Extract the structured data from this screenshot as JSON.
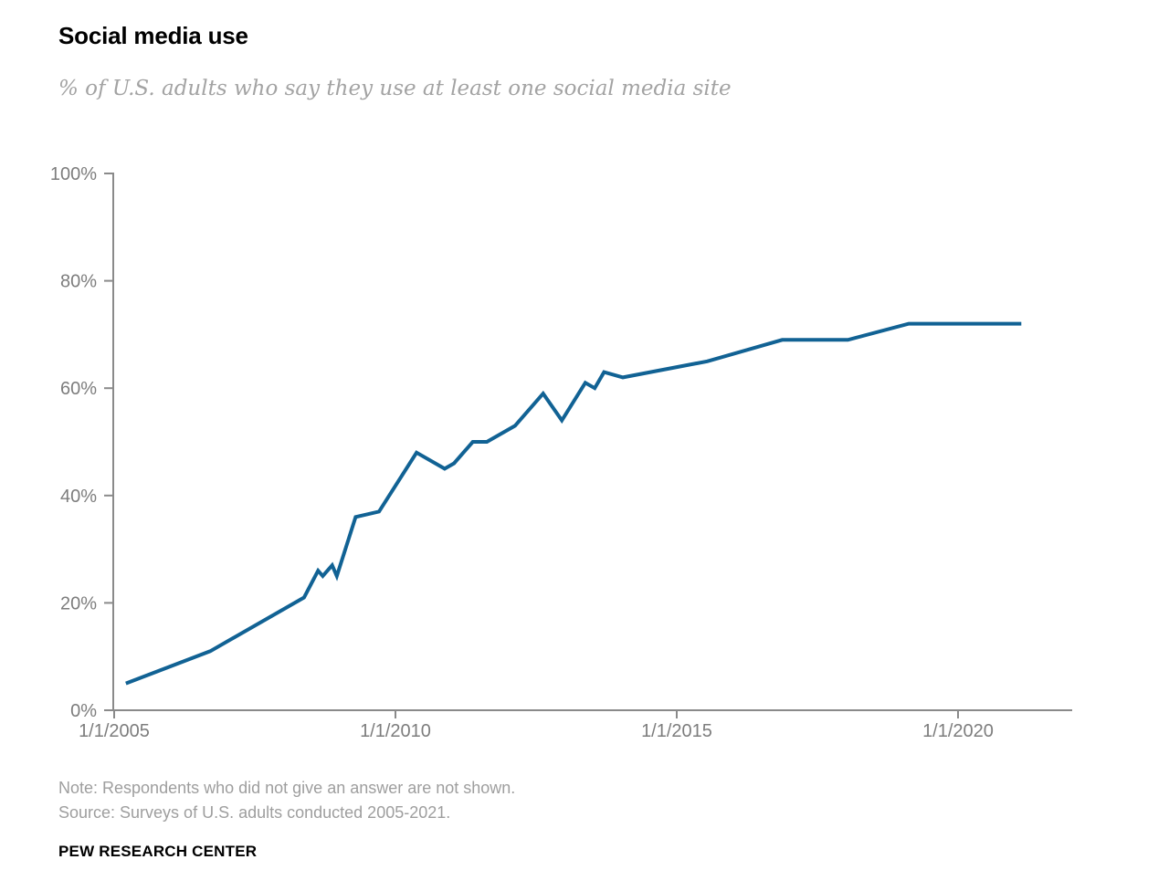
{
  "chart_data": {
    "type": "line",
    "title": "Social media use",
    "subtitle": "% of U.S. adults who say they use at least one social media site",
    "grid": false,
    "legend": "none",
    "x_axis": {
      "ticks": [
        {
          "label": "1/1/2005",
          "year": 2005
        },
        {
          "label": "1/1/2010",
          "year": 2010
        },
        {
          "label": "1/1/2015",
          "year": 2015
        },
        {
          "label": "1/1/2020",
          "year": 2020
        }
      ],
      "range_years": [
        2005,
        2022
      ]
    },
    "y_axis": {
      "unit": "%",
      "range": [
        0,
        100
      ],
      "ticks": [
        {
          "label": "0%",
          "value": 0
        },
        {
          "label": "20%",
          "value": 20
        },
        {
          "label": "40%",
          "value": 40
        },
        {
          "label": "60%",
          "value": 60
        },
        {
          "label": "80%",
          "value": 80
        },
        {
          "label": "100%",
          "value": 100
        }
      ]
    },
    "series": [
      {
        "name": "% of U.S. adults who say they use at least one social media site",
        "color": "#116294",
        "points": [
          {
            "date": "2005-03",
            "value": 5
          },
          {
            "date": "2006-09",
            "value": 11
          },
          {
            "date": "2008-05",
            "value": 21
          },
          {
            "date": "2008-08",
            "value": 26
          },
          {
            "date": "2008-09",
            "value": 25
          },
          {
            "date": "2008-11",
            "value": 27
          },
          {
            "date": "2008-12",
            "value": 25
          },
          {
            "date": "2009-04",
            "value": 36
          },
          {
            "date": "2009-09",
            "value": 37
          },
          {
            "date": "2010-05",
            "value": 48
          },
          {
            "date": "2010-11",
            "value": 45
          },
          {
            "date": "2011-01",
            "value": 46
          },
          {
            "date": "2011-05",
            "value": 50
          },
          {
            "date": "2011-08",
            "value": 50
          },
          {
            "date": "2012-02",
            "value": 53
          },
          {
            "date": "2012-08",
            "value": 59
          },
          {
            "date": "2012-12",
            "value": 54
          },
          {
            "date": "2013-05",
            "value": 61
          },
          {
            "date": "2013-07",
            "value": 60
          },
          {
            "date": "2013-09",
            "value": 63
          },
          {
            "date": "2014-01",
            "value": 62
          },
          {
            "date": "2015-07",
            "value": 65
          },
          {
            "date": "2016-11",
            "value": 69
          },
          {
            "date": "2018-01",
            "value": 69
          },
          {
            "date": "2019-02",
            "value": 72
          },
          {
            "date": "2021-02",
            "value": 72
          }
        ]
      }
    ],
    "colors": {
      "line": "#116294",
      "axis": "#8a8a8a",
      "tick_label": "#7d7d7d"
    }
  },
  "footer": {
    "note": "Note: Respondents who did not give an answer are not shown.",
    "source": "Source: Surveys of U.S. adults conducted 2005-2021.",
    "org": "PEW RESEARCH CENTER"
  }
}
